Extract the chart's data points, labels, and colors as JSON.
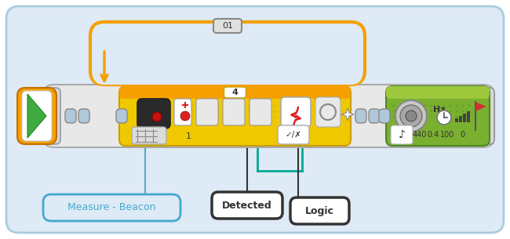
{
  "bg_color": "#deeaf5",
  "outer_border_color": "#aaccdd",
  "fig_bg": "#ffffff",
  "label_measure_beacon": "Measure - Beacon",
  "label_detected": "Detected",
  "label_logic": "Logic",
  "label_01": "01",
  "label_4": "4",
  "label_1": "1",
  "label_hz": "Hz",
  "label_440": "440",
  "label_04": "0.4",
  "label_100": "100",
  "label_0": "0",
  "orange_color": "#f5a000",
  "yellow_color": "#f0c800",
  "green_top_color": "#9dc83c",
  "green_bar_color": "#7ab030",
  "gray_body_color": "#c8c8c8",
  "gray_light": "#e8e8e8",
  "gray_mid_color": "#d8d8d8",
  "dark_gray": "#888888",
  "med_gray": "#aaaaaa",
  "black": "#111111",
  "near_black": "#333333",
  "white": "#ffffff",
  "teal_wire": "#00a896",
  "blue_line_color": "#5aaacc",
  "blue_label_color": "#44aacc",
  "title_box_color": "#e0e0e0",
  "connector_fill": "#b0c8d8",
  "loop_gray": "#b8b8b8",
  "red_icon": "#dd2222"
}
